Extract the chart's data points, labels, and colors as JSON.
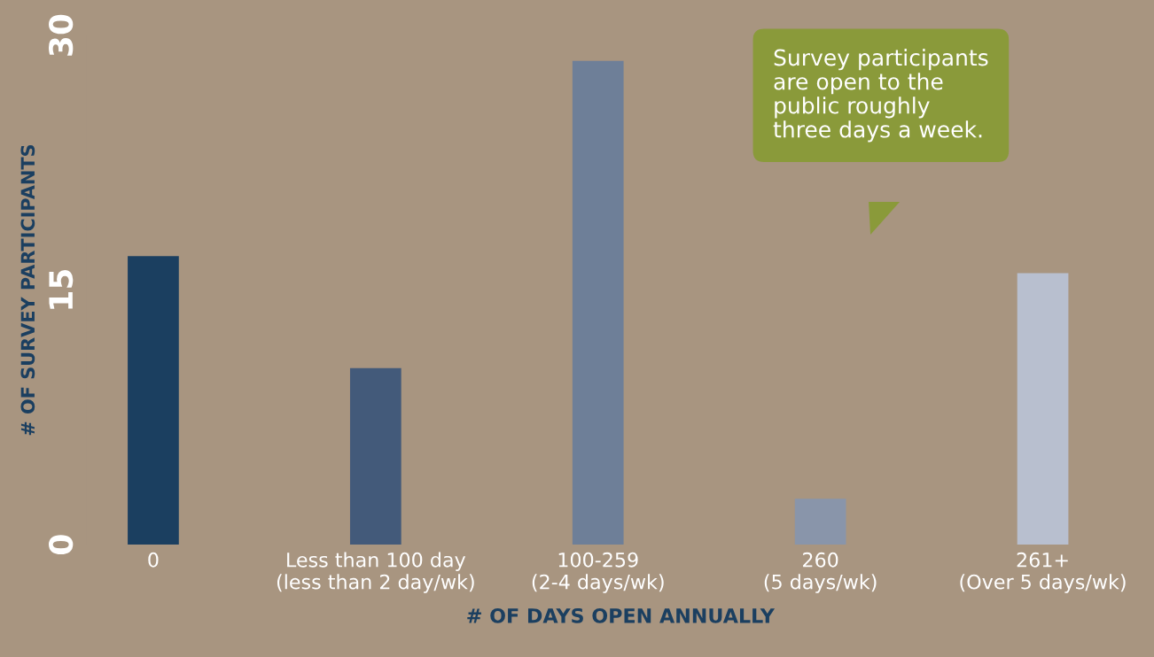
{
  "chart_data": {
    "type": "bar",
    "xlabel": "# OF DAYS OPEN ANNUALLY",
    "ylabel": "# OF SURVEY PARTICIPANTS",
    "categories": [
      "0",
      "Less than 100 day\n(less than 2 day/wk)",
      "100-259\n(2-4 days/wk)",
      "260\n(5 days/wk)",
      "261+\n(Over 5 days/wk)"
    ],
    "values": [
      17,
      10.4,
      28.5,
      2.7,
      16
    ],
    "colors": [
      "#1b3f60",
      "#435a7a",
      "#6e7f98",
      "#8995aa",
      "#b8bfcf"
    ],
    "ylim": [
      0,
      30
    ],
    "yticks": [
      0,
      15,
      30
    ],
    "grid": false,
    "legend": false,
    "annotations": [
      "Survey participants\nare open to the\npublic roughly\nthree days a week."
    ]
  }
}
